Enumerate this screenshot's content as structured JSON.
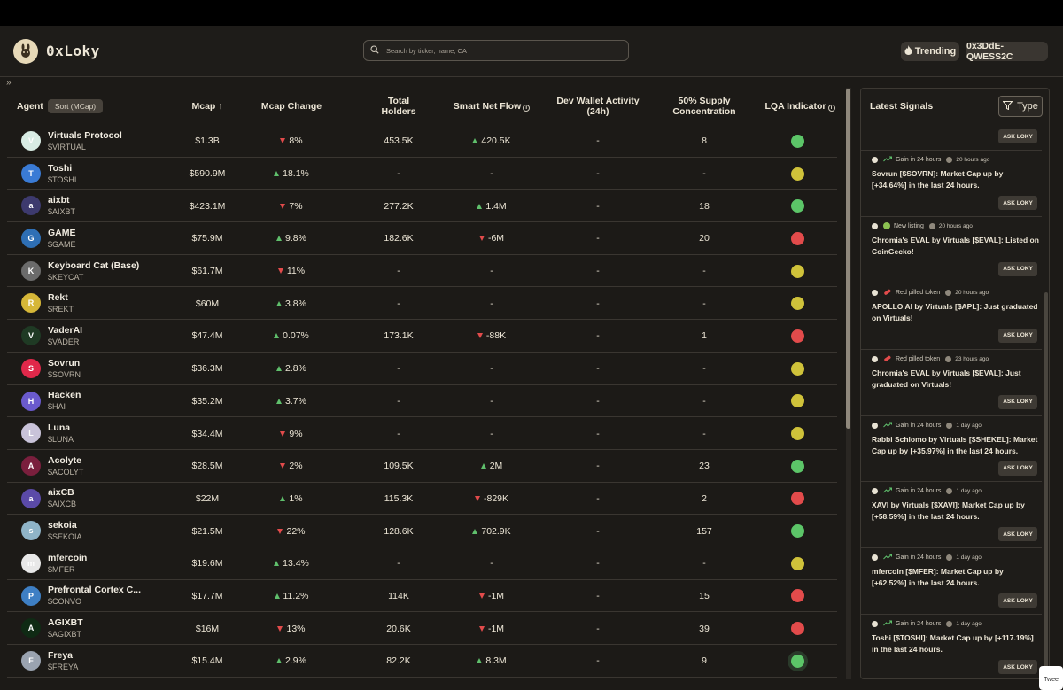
{
  "header": {
    "logo_text": "0xLoky",
    "search_placeholder": "Search by ticker, name, CA",
    "trending_label": "Trending",
    "wallet_label": "0x3DdE-QWESS2C",
    "collapse_glyph": "»"
  },
  "table": {
    "headers": {
      "agent": "Agent",
      "sort": "Sort (MCap)",
      "mcap": "Mcap ↑",
      "mcap_change": "Mcap Change",
      "total_holders_1": "Total",
      "total_holders_2": "Holders",
      "smart_net_flow": "Smart Net Flow",
      "dev_wallet_1": "Dev Wallet Activity",
      "dev_wallet_2": "(24h)",
      "supply_1": "50% Supply",
      "supply_2": "Concentration",
      "lqa": "LQA Indicator"
    },
    "rows": [
      {
        "name": "Virtuals Protocol",
        "ticker": "$VIRTUAL",
        "mcap": "$1.3B",
        "change": "8%",
        "change_dir": "down",
        "holders": "453.5K",
        "flow": "420.5K",
        "flow_dir": "up",
        "dev": "-",
        "supply": "8",
        "lqa": "green",
        "avatar_color": "#d8ece4",
        "avatar_text": "V"
      },
      {
        "name": "Toshi",
        "ticker": "$TOSHI",
        "mcap": "$590.9M",
        "change": "18.1%",
        "change_dir": "up",
        "holders": "-",
        "flow": "-",
        "flow_dir": "none",
        "dev": "-",
        "supply": "-",
        "lqa": "yellow",
        "avatar_color": "#3a7bd5",
        "avatar_text": "T"
      },
      {
        "name": "aixbt",
        "ticker": "$AIXBT",
        "mcap": "$423.1M",
        "change": "7%",
        "change_dir": "down",
        "holders": "277.2K",
        "flow": "1.4M",
        "flow_dir": "up",
        "dev": "-",
        "supply": "18",
        "lqa": "green",
        "avatar_color": "#3d3a6e",
        "avatar_text": "a"
      },
      {
        "name": "GAME",
        "ticker": "$GAME",
        "mcap": "$75.9M",
        "change": "9.8%",
        "change_dir": "up",
        "holders": "182.6K",
        "flow": "-6M",
        "flow_dir": "down",
        "dev": "-",
        "supply": "20",
        "lqa": "red",
        "avatar_color": "#2e6fb5",
        "avatar_text": "G"
      },
      {
        "name": "Keyboard Cat (Base)",
        "ticker": "$KEYCAT",
        "mcap": "$61.7M",
        "change": "11%",
        "change_dir": "down",
        "holders": "-",
        "flow": "-",
        "flow_dir": "none",
        "dev": "-",
        "supply": "-",
        "lqa": "yellow",
        "avatar_color": "#6b6b6b",
        "avatar_text": "K"
      },
      {
        "name": "Rekt",
        "ticker": "$REKT",
        "mcap": "$60M",
        "change": "3.8%",
        "change_dir": "up",
        "holders": "-",
        "flow": "-",
        "flow_dir": "none",
        "dev": "-",
        "supply": "-",
        "lqa": "yellow",
        "avatar_color": "#d6b738",
        "avatar_text": "R"
      },
      {
        "name": "VaderAI",
        "ticker": "$VADER",
        "mcap": "$47.4M",
        "change": "0.07%",
        "change_dir": "up",
        "holders": "173.1K",
        "flow": "-88K",
        "flow_dir": "down",
        "dev": "-",
        "supply": "1",
        "lqa": "red",
        "avatar_color": "#1f3a24",
        "avatar_text": "V"
      },
      {
        "name": "Sovrun",
        "ticker": "$SOVRN",
        "mcap": "$36.3M",
        "change": "2.8%",
        "change_dir": "up",
        "holders": "-",
        "flow": "-",
        "flow_dir": "none",
        "dev": "-",
        "supply": "-",
        "lqa": "yellow",
        "avatar_color": "#e0284a",
        "avatar_text": "S"
      },
      {
        "name": "Hacken",
        "ticker": "$HAI",
        "mcap": "$35.2M",
        "change": "3.7%",
        "change_dir": "up",
        "holders": "-",
        "flow": "-",
        "flow_dir": "none",
        "dev": "-",
        "supply": "-",
        "lqa": "yellow",
        "avatar_color": "#6a5acd",
        "avatar_text": "H"
      },
      {
        "name": "Luna",
        "ticker": "$LUNA",
        "mcap": "$34.4M",
        "change": "9%",
        "change_dir": "down",
        "holders": "-",
        "flow": "-",
        "flow_dir": "none",
        "dev": "-",
        "supply": "-",
        "lqa": "yellow",
        "avatar_color": "#c9c3d9",
        "avatar_text": "L"
      },
      {
        "name": "Acolyte",
        "ticker": "$ACOLYT",
        "mcap": "$28.5M",
        "change": "2%",
        "change_dir": "down",
        "holders": "109.5K",
        "flow": "2M",
        "flow_dir": "up",
        "dev": "-",
        "supply": "23",
        "lqa": "green",
        "avatar_color": "#7a1f3d",
        "avatar_text": "A"
      },
      {
        "name": "aixCB",
        "ticker": "$AIXCB",
        "mcap": "$22M",
        "change": "1%",
        "change_dir": "up",
        "holders": "115.3K",
        "flow": "-829K",
        "flow_dir": "down",
        "dev": "-",
        "supply": "2",
        "lqa": "red",
        "avatar_color": "#5b4aa8",
        "avatar_text": "a"
      },
      {
        "name": "sekoia",
        "ticker": "$SEKOIA",
        "mcap": "$21.5M",
        "change": "22%",
        "change_dir": "down",
        "holders": "128.6K",
        "flow": "702.9K",
        "flow_dir": "up",
        "dev": "-",
        "supply": "157",
        "lqa": "green",
        "avatar_color": "#8fb4c8",
        "avatar_text": "s"
      },
      {
        "name": "mfercoin",
        "ticker": "$MFER",
        "mcap": "$19.6M",
        "change": "13.4%",
        "change_dir": "up",
        "holders": "-",
        "flow": "-",
        "flow_dir": "none",
        "dev": "-",
        "supply": "-",
        "lqa": "yellow",
        "avatar_color": "#e8e8e8",
        "avatar_text": "m"
      },
      {
        "name": "Prefrontal Cortex C...",
        "ticker": "$CONVO",
        "mcap": "$17.7M",
        "change": "11.2%",
        "change_dir": "up",
        "holders": "114K",
        "flow": "-1M",
        "flow_dir": "down",
        "dev": "-",
        "supply": "15",
        "lqa": "red",
        "avatar_color": "#3e7fc4",
        "avatar_text": "P"
      },
      {
        "name": "AGIXBT",
        "ticker": "$AGIXBT",
        "mcap": "$16M",
        "change": "13%",
        "change_dir": "down",
        "holders": "20.6K",
        "flow": "-1M",
        "flow_dir": "down",
        "dev": "-",
        "supply": "39",
        "lqa": "red",
        "avatar_color": "#0f2a14",
        "avatar_text": "A"
      },
      {
        "name": "Freya",
        "ticker": "$FREYA",
        "mcap": "$15.4M",
        "change": "2.9%",
        "change_dir": "up",
        "holders": "82.2K",
        "flow": "8.3M",
        "flow_dir": "up",
        "dev": "-",
        "supply": "9",
        "lqa": "green",
        "avatar_color": "#9aa3b0",
        "avatar_text": "F"
      }
    ]
  },
  "signals": {
    "title": "Latest Signals",
    "type_label": "Type",
    "ask_label": "ASK LOKY",
    "items": [
      {
        "type": "",
        "time": "",
        "text": ""
      },
      {
        "type": "Gain in 24 hours",
        "time": "20 hours ago",
        "text": "Sovrun [$SOVRN]: Market Cap up by [+34.64%] in the last 24 hours."
      },
      {
        "type": "New listing",
        "time": "20 hours ago",
        "text": "Chromia's EVAL by Virtuals [$EVAL]: Listed on CoinGecko!"
      },
      {
        "type": "Red pilled token",
        "time": "20 hours ago",
        "text": "APOLLO AI by Virtuals [$APL]: Just graduated on Virtuals!"
      },
      {
        "type": "Red pilled token",
        "time": "23 hours ago",
        "text": "Chromia's EVAL by Virtuals [$EVAL]: Just graduated on Virtuals!"
      },
      {
        "type": "Gain in 24 hours",
        "time": "1 day ago",
        "text": "Rabbi Schlomo by Virtuals [$SHEKEL]: Market Cap up by [+35.97%] in the last 24 hours."
      },
      {
        "type": "Gain in 24 hours",
        "time": "1 day ago",
        "text": "XAVI by Virtuals [$XAVI]: Market Cap up by [+58.59%] in the last 24 hours."
      },
      {
        "type": "Gain in 24 hours",
        "time": "1 day ago",
        "text": "mfercoin [$MFER]: Market Cap up by [+62.52%] in the last 24 hours."
      },
      {
        "type": "Gain in 24 hours",
        "time": "1 day ago",
        "text": "Toshi [$TOSHI]: Market Cap up by [+117.19%] in the last 24 hours."
      }
    ]
  },
  "tweet_chip": "Twee",
  "colors": {
    "green": "#5cc568",
    "yellow": "#cfc23a",
    "red": "#e24b4b"
  }
}
